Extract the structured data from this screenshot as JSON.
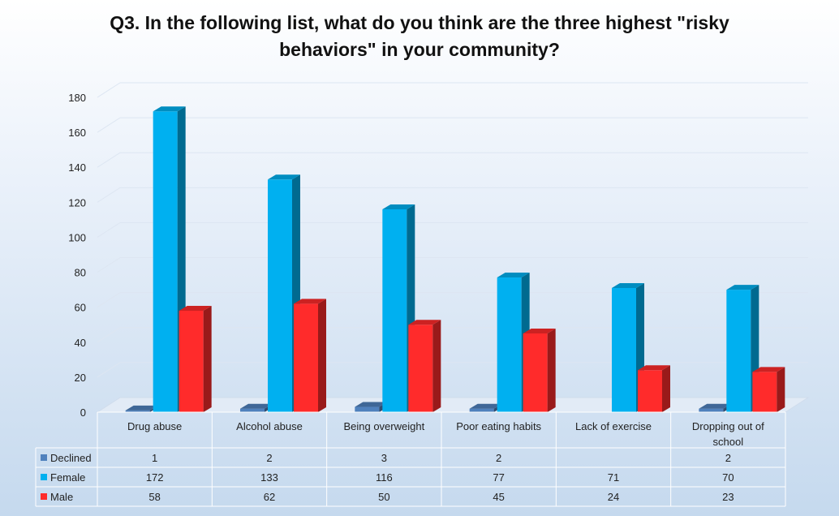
{
  "chart_data": {
    "type": "bar",
    "title_lines": [
      "Q3. In the following list, what do you think are the three highest \"risky",
      "behaviors\" in your community?"
    ],
    "categories": [
      [
        "Drug abuse"
      ],
      [
        "Alcohol abuse"
      ],
      [
        "Being overweight"
      ],
      [
        "Poor eating habits"
      ],
      [
        "Lack of exercise"
      ],
      [
        "Dropping out of",
        "school"
      ]
    ],
    "series": [
      {
        "name": "Declined",
        "values": [
          1,
          2,
          3,
          2,
          null,
          2
        ],
        "color": "#4f81bd"
      },
      {
        "name": "Female",
        "values": [
          172,
          133,
          116,
          77,
          71,
          70
        ],
        "color": "#00b0f0"
      },
      {
        "name": "Male",
        "values": [
          58,
          62,
          50,
          45,
          24,
          23
        ],
        "color": "#ff2b2b"
      }
    ],
    "ylim": [
      0,
      180
    ],
    "yticks": [
      0,
      20,
      40,
      60,
      80,
      100,
      120,
      140,
      160,
      180
    ],
    "grid": true,
    "data_table": true
  }
}
